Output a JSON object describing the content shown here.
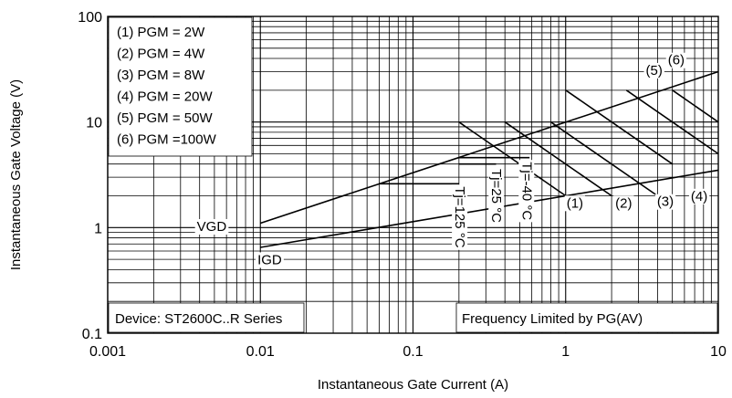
{
  "chart_data": {
    "type": "line",
    "xscale": "log",
    "yscale": "log",
    "xlim": [
      0.001,
      10
    ],
    "ylim": [
      0.1,
      100
    ],
    "xlabel": "Instantaneous Gate Current (A)",
    "ylabel": "Instantaneous Gate Voltage (V)",
    "x_ticks": [
      "0.001",
      "0.01",
      "0.1",
      "1",
      "10"
    ],
    "y_ticks": [
      "0.1",
      "1",
      "10",
      "100"
    ],
    "legend": [
      "(1) PGM = 2W",
      "(2) PGM = 4W",
      "(3) PGM = 8W",
      "(4) PGM = 20W",
      "(5) PGM = 50W",
      "(6) PGM =100W"
    ],
    "device_note": "Device: ST2600C..R Series",
    "frequency_note": "Frequency Limited by PG(AV)",
    "vgd_label": "VGD",
    "igd_label": "IGD",
    "series": [
      {
        "name": "VGD",
        "x": [
          0.01,
          10
        ],
        "y": [
          1.1,
          30
        ]
      },
      {
        "name": "IGD",
        "x": [
          0.01,
          10
        ],
        "y": [
          0.65,
          3.5
        ]
      },
      {
        "name": "(1) PGM = 2W",
        "x": [
          0.2,
          1
        ],
        "y": [
          10,
          2
        ]
      },
      {
        "name": "(2) PGM = 4W",
        "x": [
          0.4,
          2
        ],
        "y": [
          10,
          2
        ]
      },
      {
        "name": "(3) PGM = 8W",
        "x": [
          0.8,
          4
        ],
        "y": [
          10,
          2
        ]
      },
      {
        "name": "(4) PGM = 20W",
        "x": [
          1,
          5
        ],
        "y": [
          20,
          4
        ]
      },
      {
        "name": "(5) PGM = 50W",
        "x": [
          2.5,
          10
        ],
        "y": [
          20,
          5
        ]
      },
      {
        "name": "(6) PGM =100W",
        "x": [
          5,
          10
        ],
        "y": [
          20,
          10
        ]
      }
    ],
    "temperature_lines": [
      {
        "label": "Tj=-40 °C",
        "x": [
          0.2,
          0.58
        ],
        "y": [
          4.6,
          4.6
        ]
      },
      {
        "label": "Tj=25 °C",
        "x": [
          0.2,
          0.35
        ],
        "y": [
          4.0,
          4.0
        ]
      },
      {
        "label": "Tj=125 °C",
        "x": [
          0.06,
          0.2
        ],
        "y": [
          2.6,
          2.6
        ]
      }
    ],
    "curve_labels": [
      {
        "text": "(1)",
        "x": 1.15,
        "y": 1.55
      },
      {
        "text": "(2)",
        "x": 2.4,
        "y": 1.55
      },
      {
        "text": "(3)",
        "x": 4.5,
        "y": 1.6
      },
      {
        "text": "(4)",
        "x": 7.5,
        "y": 1.8
      },
      {
        "text": "(5)",
        "x": 3.8,
        "y": 28
      },
      {
        "text": "(6)",
        "x": 5.3,
        "y": 35
      }
    ]
  }
}
